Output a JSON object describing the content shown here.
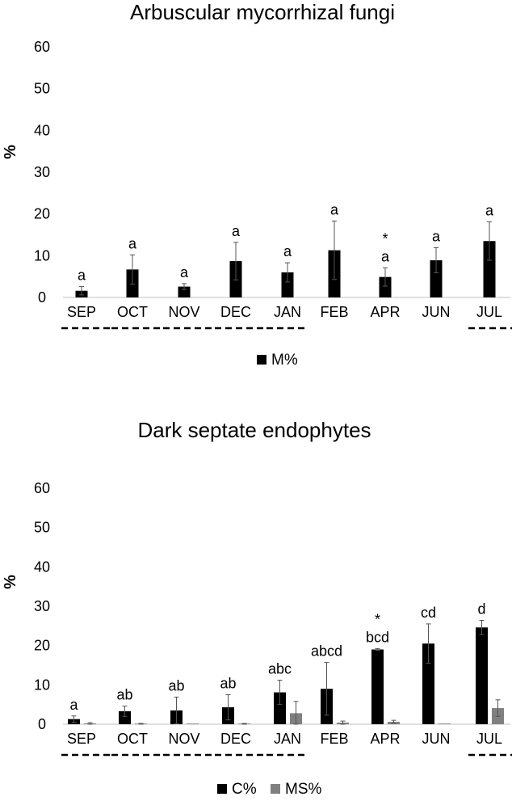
{
  "chart_data": [
    {
      "type": "bar",
      "title": "Arbuscular mycorrhizal fungi",
      "xlabel": "",
      "ylabel": "%",
      "ylim": [
        0,
        60
      ],
      "yticks": [
        0,
        10,
        20,
        30,
        40,
        50,
        60
      ],
      "grid": false,
      "legend_position": "bottom-center",
      "categories": [
        "SEP",
        "OCT",
        "NOV",
        "DEC",
        "JAN",
        "FEB",
        "APR",
        "JUN",
        "JUL"
      ],
      "series": [
        {
          "name": "M%",
          "color": "#000000",
          "values": [
            1.6,
            6.7,
            2.6,
            8.7,
            6.0,
            11.3,
            4.9,
            8.9,
            13.5
          ],
          "errors": [
            1.0,
            3.5,
            0.7,
            4.5,
            2.3,
            7.0,
            2.2,
            3.0,
            4.6
          ],
          "labels": [
            "a",
            "a",
            "a",
            "a",
            "a",
            "a",
            "a",
            "a",
            "a"
          ]
        }
      ],
      "asterisk_categories": [
        "APR"
      ],
      "underlined_categories": [
        "SEP",
        "OCT",
        "NOV",
        "DEC",
        "JAN",
        "JUL"
      ]
    },
    {
      "type": "bar",
      "title": "Dark septate endophytes",
      "xlabel": "",
      "ylabel": "%",
      "ylim": [
        0,
        60
      ],
      "yticks": [
        0,
        10,
        20,
        30,
        40,
        50,
        60
      ],
      "grid": false,
      "legend_position": "bottom-center",
      "categories": [
        "SEP",
        "OCT",
        "NOV",
        "DEC",
        "JAN",
        "FEB",
        "APR",
        "JUN",
        "JUL"
      ],
      "series": [
        {
          "name": "C%",
          "color": "#000000",
          "values": [
            1.3,
            3.3,
            3.5,
            4.3,
            8.1,
            9.0,
            19.0,
            20.5,
            24.6
          ],
          "errors": [
            0.8,
            1.3,
            3.4,
            3.2,
            3.1,
            6.7,
            0.2,
            5.0,
            1.8
          ],
          "labels": [
            "a",
            "ab",
            "ab",
            "ab",
            "abc",
            "abcd",
            "bcd",
            "cd",
            "d"
          ]
        },
        {
          "name": "MS%",
          "color": "#808080",
          "values": [
            0.2,
            0.1,
            0.0,
            0.1,
            2.8,
            0.4,
            0.6,
            0.0,
            4.1
          ],
          "errors": [
            0.2,
            0.1,
            0.0,
            0.1,
            3.0,
            0.4,
            0.4,
            0.0,
            2.1
          ]
        }
      ],
      "asterisk_categories": [
        "APR"
      ],
      "underlined_categories": [
        "SEP",
        "OCT",
        "NOV",
        "DEC",
        "JAN",
        "JUL"
      ]
    }
  ]
}
